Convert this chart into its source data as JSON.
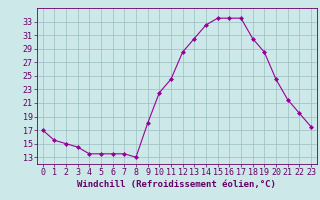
{
  "x": [
    0,
    1,
    2,
    3,
    4,
    5,
    6,
    7,
    8,
    9,
    10,
    11,
    12,
    13,
    14,
    15,
    16,
    17,
    18,
    19,
    20,
    21,
    22,
    23
  ],
  "y": [
    17,
    15.5,
    15,
    14.5,
    13.5,
    13.5,
    13.5,
    13.5,
    13,
    18,
    22.5,
    24.5,
    28.5,
    30.5,
    32.5,
    33.5,
    33.5,
    33.5,
    30.5,
    28.5,
    24.5,
    21.5,
    19.5,
    17.5
  ],
  "line_color": "#990099",
  "marker": "D",
  "marker_size": 2,
  "bg_color": "#cce8e8",
  "grid_color": "#9bbfbf",
  "axis_color": "#660066",
  "xlabel": "Windchill (Refroidissement éolien,°C)",
  "xlabel_fontsize": 6.5,
  "tick_fontsize": 6,
  "ylim": [
    12,
    35
  ],
  "xlim": [
    -0.5,
    23.5
  ],
  "yticks": [
    13,
    15,
    17,
    19,
    21,
    23,
    25,
    27,
    29,
    31,
    33
  ],
  "xticks": [
    0,
    1,
    2,
    3,
    4,
    5,
    6,
    7,
    8,
    9,
    10,
    11,
    12,
    13,
    14,
    15,
    16,
    17,
    18,
    19,
    20,
    21,
    22,
    23
  ]
}
